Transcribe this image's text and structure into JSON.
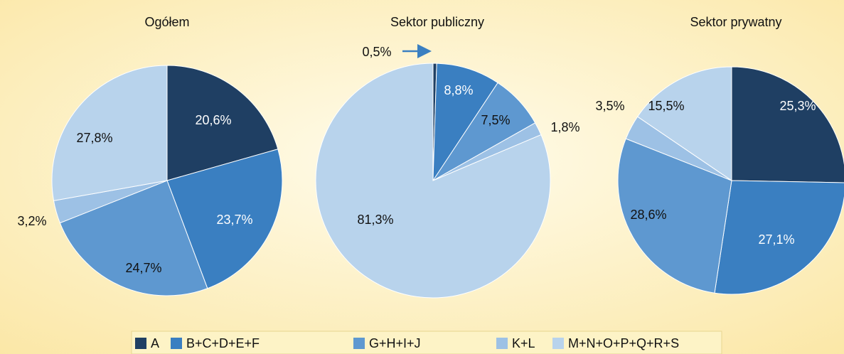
{
  "chart_data": [
    {
      "type": "pie",
      "title": "Ogółem",
      "values": [
        20.6,
        23.7,
        24.7,
        3.2,
        27.8
      ],
      "value_labels": [
        "20,6%",
        "23,7%",
        "24,7%",
        "3,2%",
        "27,8%"
      ]
    },
    {
      "type": "pie",
      "title": "Sektor publiczny",
      "values": [
        0.5,
        8.8,
        7.5,
        1.8,
        81.3
      ],
      "value_labels": [
        "0,5%",
        "8,8%",
        "7,5%",
        "1,8%",
        "81,3%"
      ]
    },
    {
      "type": "pie",
      "title": "Sektor prywatny",
      "values": [
        25.3,
        27.1,
        28.6,
        3.5,
        15.5
      ],
      "value_labels": [
        "25,3%",
        "27,1%",
        "28,6%",
        "3,5%",
        "15,5%"
      ]
    }
  ],
  "legend": {
    "categories": [
      "A",
      "B+C+D+E+F",
      "G+H+I+J",
      "K+L",
      "M+N+O+P+Q+R+S"
    ],
    "colors": [
      "#1f3f63",
      "#3a7fc1",
      "#5e98d0",
      "#9dc1e5",
      "#b8d3ec"
    ]
  }
}
